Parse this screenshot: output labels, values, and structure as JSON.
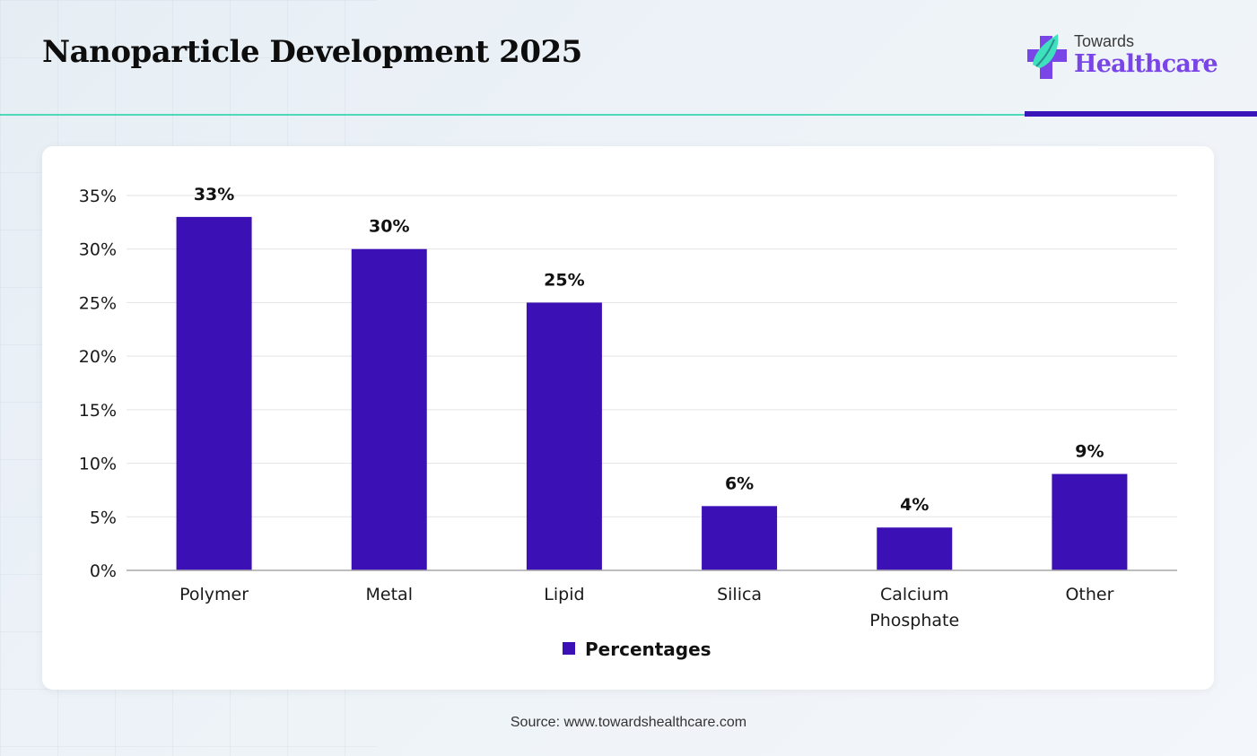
{
  "header": {
    "title": "Nanoparticle Development 2025",
    "logo_line1": "Towards",
    "logo_line2": "Healthcare"
  },
  "footer": {
    "source": "Source: www.towardshealthcare.com"
  },
  "colors": {
    "bar": "#3b10b5",
    "accent_teal": "#4fd9b8",
    "accent_purple": "#3a15b8",
    "logo_purple": "#7a45e6"
  },
  "chart_data": {
    "type": "bar",
    "title": "Nanoparticle Development 2025",
    "categories": [
      "Polymer",
      "Metal",
      "Lipid",
      "Silica",
      "Calcium Phosphate",
      "Other"
    ],
    "category_lines": [
      [
        "Polymer"
      ],
      [
        "Metal"
      ],
      [
        "Lipid"
      ],
      [
        "Silica"
      ],
      [
        "Calcium",
        "Phosphate"
      ],
      [
        "Other"
      ]
    ],
    "series": [
      {
        "name": "Percentages",
        "values": [
          33,
          30,
          25,
          6,
          4,
          9
        ],
        "labels": [
          "33%",
          "30%",
          "25%",
          "6%",
          "4%",
          "9%"
        ]
      }
    ],
    "ylim": [
      0,
      35
    ],
    "yticks": [
      0,
      5,
      10,
      15,
      20,
      25,
      30,
      35
    ],
    "ytick_labels": [
      "0%",
      "5%",
      "10%",
      "15%",
      "20%",
      "25%",
      "30%",
      "35%"
    ],
    "xlabel": "",
    "ylabel": "",
    "grid": true,
    "legend_position": "bottom"
  }
}
